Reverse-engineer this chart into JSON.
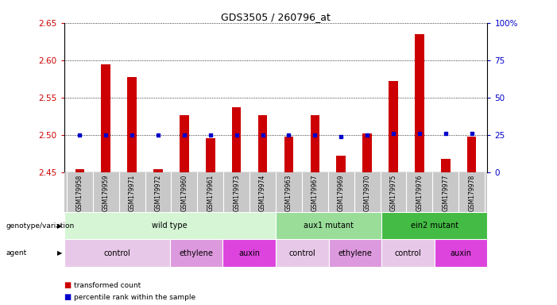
{
  "title": "GDS3505 / 260796_at",
  "samples": [
    "GSM179958",
    "GSM179959",
    "GSM179971",
    "GSM179972",
    "GSM179960",
    "GSM179961",
    "GSM179973",
    "GSM179974",
    "GSM179963",
    "GSM179967",
    "GSM179969",
    "GSM179970",
    "GSM179975",
    "GSM179976",
    "GSM179977",
    "GSM179978"
  ],
  "bar_values": [
    2.454,
    2.594,
    2.578,
    2.454,
    2.526,
    2.496,
    2.537,
    2.527,
    2.498,
    2.526,
    2.472,
    2.502,
    2.572,
    2.635,
    2.468,
    2.498
  ],
  "percentile_values": [
    25,
    25,
    25,
    25,
    25,
    25,
    25,
    25,
    25,
    25,
    24,
    25,
    26,
    26,
    26,
    26
  ],
  "bar_bottom": 2.45,
  "ylim_left": [
    2.45,
    2.65
  ],
  "ylim_right": [
    0,
    100
  ],
  "yticks_left": [
    2.45,
    2.5,
    2.55,
    2.6,
    2.65
  ],
  "yticks_right": [
    0,
    25,
    50,
    75,
    100
  ],
  "ytick_labels_right": [
    "0",
    "25",
    "50",
    "75",
    "100%"
  ],
  "genotype_groups": [
    {
      "label": "wild type",
      "start": 0,
      "end": 8,
      "color": "#d5f5d5"
    },
    {
      "label": "aux1 mutant",
      "start": 8,
      "end": 12,
      "color": "#99dd99"
    },
    {
      "label": "ein2 mutant",
      "start": 12,
      "end": 16,
      "color": "#44bb44"
    }
  ],
  "agent_groups": [
    {
      "label": "control",
      "start": 0,
      "end": 4,
      "color": "#e8c8e8"
    },
    {
      "label": "ethylene",
      "start": 4,
      "end": 6,
      "color": "#dd99dd"
    },
    {
      "label": "auxin",
      "start": 6,
      "end": 8,
      "color": "#dd44dd"
    },
    {
      "label": "control",
      "start": 8,
      "end": 10,
      "color": "#e8c8e8"
    },
    {
      "label": "ethylene",
      "start": 10,
      "end": 12,
      "color": "#dd99dd"
    },
    {
      "label": "control",
      "start": 12,
      "end": 14,
      "color": "#e8c8e8"
    },
    {
      "label": "auxin",
      "start": 14,
      "end": 16,
      "color": "#dd44dd"
    }
  ],
  "bar_color": "#cc0000",
  "percentile_color": "#0000cc",
  "background_color": "#ffffff",
  "left_tick_color": "#cc0000",
  "right_tick_color": "#0000cc",
  "legend_items": [
    {
      "label": "transformed count",
      "color": "#cc0000"
    },
    {
      "label": "percentile rank within the sample",
      "color": "#0000cc"
    }
  ],
  "sample_bg_color": "#c8c8c8",
  "sample_divider_color": "#ffffff"
}
